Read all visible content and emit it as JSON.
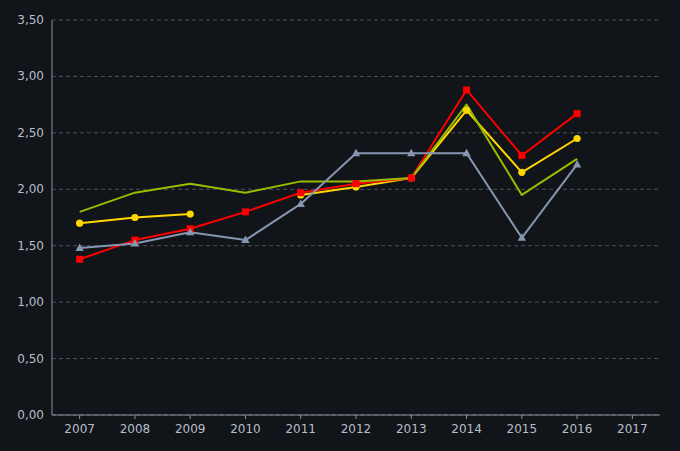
{
  "chart_data": {
    "type": "line",
    "x": [
      2007,
      2008,
      2009,
      2010,
      2011,
      2012,
      2013,
      2014,
      2015,
      2016,
      2017
    ],
    "series": [
      {
        "color": "#FFD700",
        "marker": "circle",
        "values": [
          1.7,
          1.75,
          1.78,
          null,
          1.95,
          2.02,
          2.1,
          2.7,
          2.15,
          2.45,
          null
        ]
      },
      {
        "color": "#FF0000",
        "marker": "square",
        "values": [
          1.38,
          1.55,
          1.65,
          1.8,
          1.97,
          2.05,
          2.1,
          2.88,
          2.3,
          2.67,
          null
        ]
      },
      {
        "color": "#9BBB00",
        "marker": "none",
        "values": [
          1.8,
          1.97,
          2.05,
          1.97,
          2.07,
          2.07,
          2.1,
          2.75,
          1.95,
          2.27,
          null
        ]
      },
      {
        "color": "#8496B0",
        "marker": "triangle",
        "values": [
          1.48,
          1.52,
          1.62,
          1.55,
          1.87,
          2.32,
          2.32,
          2.32,
          1.57,
          2.22,
          null
        ]
      }
    ],
    "xlim": [
      2006.5,
      2017.5
    ],
    "xticks": [
      2007,
      2008,
      2009,
      2010,
      2011,
      2012,
      2013,
      2014,
      2015,
      2016,
      2017
    ],
    "ylim": [
      0.0,
      3.5
    ],
    "yticks": [
      {
        "value": 0.0,
        "label": "0,00"
      },
      {
        "value": 0.5,
        "label": "0,50"
      },
      {
        "value": 1.0,
        "label": "1,00"
      },
      {
        "value": 1.5,
        "label": "1,50"
      },
      {
        "value": 2.0,
        "label": "2,00"
      },
      {
        "value": 2.5,
        "label": "2,50"
      },
      {
        "value": 3.0,
        "label": "3,00"
      },
      {
        "value": 3.5,
        "label": "3,50"
      }
    ],
    "grid": true
  }
}
